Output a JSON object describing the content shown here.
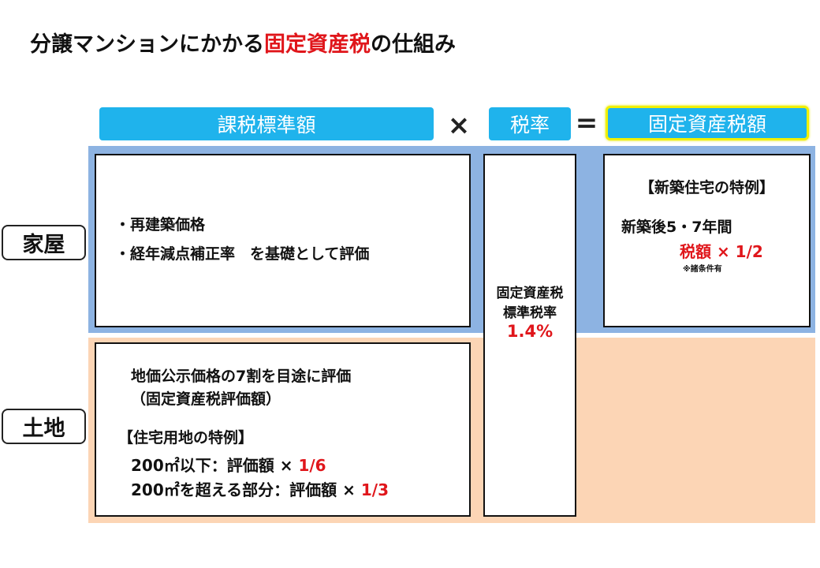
{
  "title": {
    "part1": "分譲マンションにかかる",
    "highlight": "固定資産税",
    "part2": "の仕組み"
  },
  "formula": {
    "tax_base": "課税標準額",
    "times": "×",
    "rate": "税率",
    "equals": "=",
    "tax_amount": "固定資産税額"
  },
  "rows": {
    "house": "家屋",
    "land": "土地"
  },
  "house": {
    "item1": "・再建築価格",
    "item2": "・経年減点補正率　を基礎として評価",
    "special_title": "【新築住宅の特例】",
    "special_period": "新築後5・7年間",
    "special_label": "税額 × 1/2",
    "special_note": "※諸条件有"
  },
  "rate_box": {
    "line1": "固定資産税",
    "line2": "標準税率",
    "value": "1.4%"
  },
  "land": {
    "line1": "地価公示価格の7割を目途に評価",
    "line2": "（固定資産税評価額）",
    "special_title": "【住宅用地の特例】",
    "rule1_prefix": "200㎡以下：評価額 × ",
    "rule1_value": "1/6",
    "rule2_prefix": "200㎡を超える部分：評価額 × ",
    "rule2_value": "1/3"
  },
  "colors": {
    "header_blue": "#1fb3ec",
    "house_band": "#8db3e2",
    "land_band": "#fcd5b5",
    "accent_red": "#e0161b",
    "result_border": "#f0f000"
  }
}
